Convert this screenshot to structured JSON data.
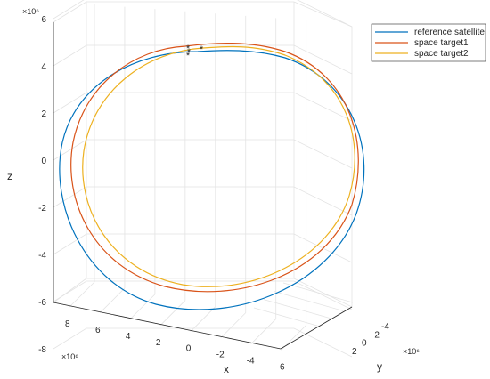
{
  "chart_data": {
    "type": "line",
    "title": "",
    "zlabel": "z",
    "xlabel": "x",
    "ylabel": "y",
    "z_exponent_label": "×10⁶",
    "x_exponent_label": "×10⁶",
    "y_exponent_label": "×10⁶",
    "z_ticks": [
      6,
      4,
      2,
      0,
      -2,
      -4,
      -6,
      -8
    ],
    "x_ticks": [
      8,
      6,
      4,
      2,
      0,
      -2,
      -4,
      -6
    ],
    "y_ticks": [
      -4,
      -2,
      0,
      2
    ],
    "grid": true,
    "legend_position": "top-right",
    "series": [
      {
        "name": "reference satellite",
        "color": "#0072BD"
      },
      {
        "name": "space target1",
        "color": "#D95319"
      },
      {
        "name": "space target2",
        "color": "#EDB120"
      }
    ],
    "markers": {
      "symbol": "*",
      "color": "#FF0000",
      "count": 4
    }
  }
}
